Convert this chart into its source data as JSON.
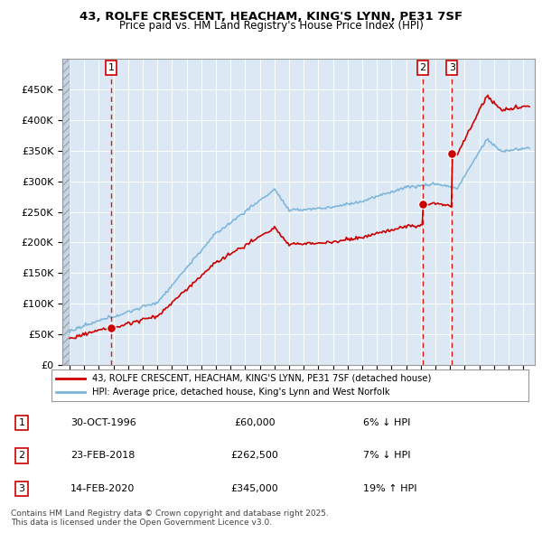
{
  "title": "43, ROLFE CRESCENT, HEACHAM, KING'S LYNN, PE31 7SF",
  "subtitle": "Price paid vs. HM Land Registry's House Price Index (HPI)",
  "legend_line1": "43, ROLFE CRESCENT, HEACHAM, KING'S LYNN, PE31 7SF (detached house)",
  "legend_line2": "HPI: Average price, detached house, King's Lynn and West Norfolk",
  "footer": "Contains HM Land Registry data © Crown copyright and database right 2025.\nThis data is licensed under the Open Government Licence v3.0.",
  "sale_labels": [
    {
      "num": 1,
      "date": "30-OCT-1996",
      "price": "£60,000",
      "pct": "6% ↓ HPI",
      "year": 1996.83
    },
    {
      "num": 2,
      "date": "23-FEB-2018",
      "price": "£262,500",
      "pct": "7% ↓ HPI",
      "year": 2018.14
    },
    {
      "num": 3,
      "date": "14-FEB-2020",
      "price": "£345,000",
      "pct": "19% ↑ HPI",
      "year": 2020.12
    }
  ],
  "sale_prices": [
    60000,
    262500,
    345000
  ],
  "sale_years": [
    1996.83,
    2018.14,
    2020.12
  ],
  "hpi_color": "#7ab4d8",
  "price_color": "#cc0000",
  "background_color": "#dce9f5",
  "ylim": [
    0,
    500000
  ],
  "yticks": [
    0,
    50000,
    100000,
    150000,
    200000,
    250000,
    300000,
    350000,
    400000,
    450000
  ],
  "xlim_start": 1993.5,
  "xlim_end": 2025.8,
  "xtick_start": 1994,
  "xtick_end": 2025
}
